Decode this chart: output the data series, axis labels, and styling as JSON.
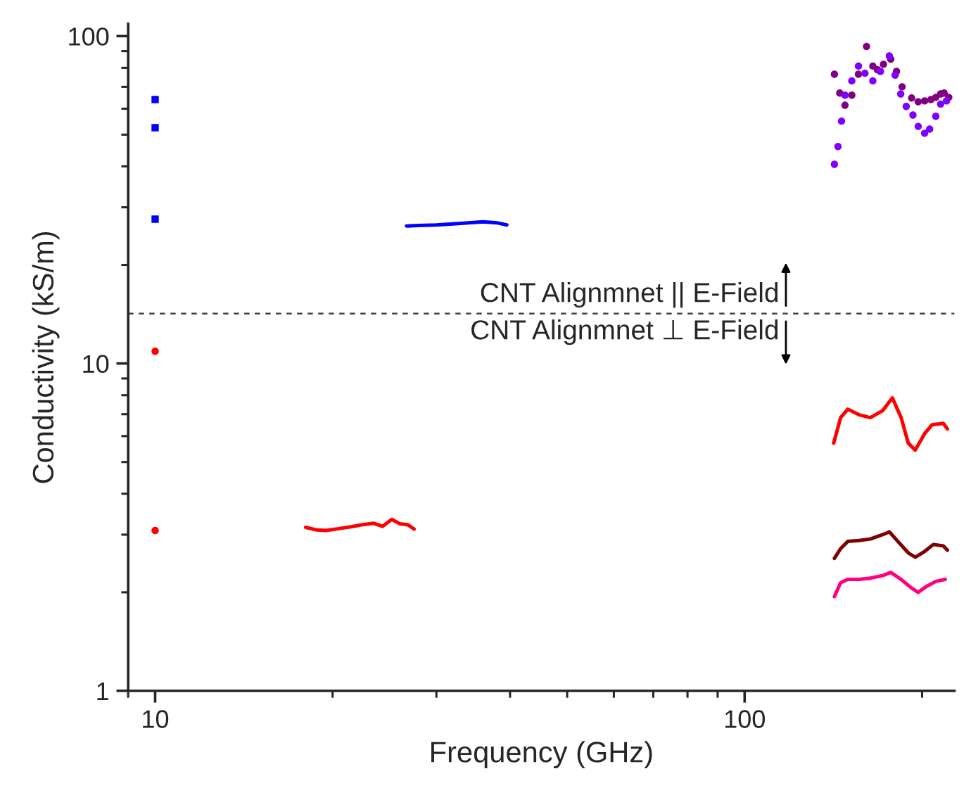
{
  "chart_data": {
    "type": "line",
    "xlabel": "Frequency (GHz)",
    "ylabel": "Conductivity (kS/m)",
    "log": "xy",
    "xlim": [
      9,
      227
    ],
    "xticks": [
      10,
      100
    ],
    "ylim": [
      1,
      109
    ],
    "yticks": [
      1,
      10,
      100
    ],
    "grid": false,
    "line_style": "solid",
    "series": [
      {
        "type": "scatter",
        "marker": "square",
        "color": "#0000ff",
        "x": [
          10,
          10,
          10
        ],
        "values": [
          64,
          52.5,
          27.6
        ]
      },
      {
        "type": "scatter",
        "marker": "circle",
        "color": "#ff0000",
        "x": [
          10,
          10
        ],
        "values": [
          10.9,
          3.09
        ]
      },
      {
        "color": "#0000ff",
        "x": [
          26.7,
          28,
          30,
          32,
          34,
          36,
          38,
          39.5
        ],
        "values": [
          26.3,
          26.4,
          26.5,
          26.7,
          26.9,
          27.1,
          26.9,
          26.5
        ]
      },
      {
        "color": "#ff0000",
        "x": [
          18.0,
          18.8,
          19.5,
          20.5,
          21.5,
          22.5,
          23.5,
          24.3,
          25.2,
          26,
          26.8,
          27.5
        ],
        "values": [
          3.16,
          3.1,
          3.09,
          3.13,
          3.17,
          3.22,
          3.25,
          3.18,
          3.34,
          3.24,
          3.22,
          3.12
        ]
      },
      {
        "type": "scatter",
        "marker": "circle",
        "color": "#800080",
        "x": [
          142,
          145,
          148,
          152,
          156,
          161,
          165,
          168,
          172,
          177,
          181,
          185,
          192,
          197,
          202,
          207,
          211,
          215,
          218,
          222
        ],
        "values": [
          76.5,
          67,
          61.5,
          66,
          76.5,
          93,
          81,
          79,
          82,
          85,
          78,
          70,
          64.7,
          63,
          63.4,
          64,
          65,
          66.6,
          67,
          65
        ]
      },
      {
        "type": "scatter",
        "marker": "circle",
        "color": "#8000ff",
        "x": [
          142,
          144,
          146,
          148,
          152,
          156,
          160,
          165,
          170,
          176,
          180,
          184,
          188,
          193,
          197,
          202,
          206,
          211,
          215,
          220
        ],
        "values": [
          40.6,
          46,
          55,
          66,
          73,
          81,
          77,
          73,
          78,
          87,
          76,
          66.6,
          61,
          57.4,
          53,
          50.5,
          52,
          56.9,
          62,
          63.4
        ]
      },
      {
        "color": "#ff0000",
        "x": [
          141.6,
          145.5,
          149.6,
          156.4,
          163.4,
          171.5,
          178.1,
          184.3,
          189.5,
          194.7,
          202.2,
          208,
          217.3,
          220.8
        ],
        "values": [
          5.71,
          6.83,
          7.25,
          6.97,
          6.83,
          7.18,
          7.85,
          6.83,
          5.71,
          5.44,
          6.12,
          6.5,
          6.56,
          6.31
        ]
      },
      {
        "color": "#800000",
        "x": [
          142,
          145.5,
          149.6,
          156.4,
          163.4,
          171.5,
          176,
          182,
          189.5,
          194.7,
          202.2,
          209,
          217.3,
          220.8
        ],
        "values": [
          2.54,
          2.72,
          2.86,
          2.88,
          2.91,
          3.0,
          3.06,
          2.86,
          2.64,
          2.56,
          2.67,
          2.8,
          2.77,
          2.69
        ]
      },
      {
        "color": "#ff0080",
        "x": [
          142,
          145.5,
          149.6,
          156.4,
          163.4,
          171.5,
          177,
          184.3,
          192,
          197,
          203,
          211,
          219
        ],
        "values": [
          1.94,
          2.14,
          2.19,
          2.19,
          2.21,
          2.25,
          2.3,
          2.19,
          2.06,
          2.0,
          2.08,
          2.16,
          2.19
        ]
      }
    ],
    "ref_lines": [
      {
        "axis": "y",
        "value": 14.2,
        "color": "#404040",
        "line_style": "dashed"
      }
    ],
    "annotations": [
      "CNT Alignmnet || E-Field",
      "CNT Alignmnet ⊥ E-Field"
    ]
  }
}
